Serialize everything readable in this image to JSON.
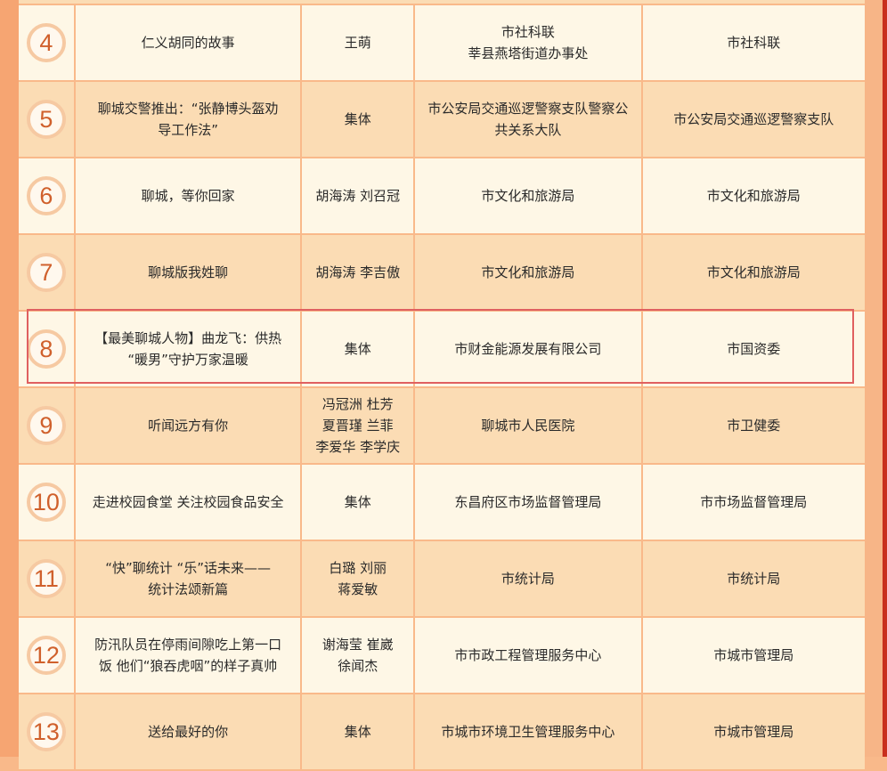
{
  "colors": {
    "row_light": "#fef7e6",
    "row_dark": "#fbdcb4",
    "number": "#d0602c",
    "highlight": "#e06060"
  },
  "highlighted_row": 8,
  "rows": [
    {
      "no": "4",
      "title": "仁义胡同的故事",
      "author": "王萌",
      "unit": "市社科联\n莘县燕塔街道办事处",
      "dept": "市社科联"
    },
    {
      "no": "5",
      "title": "聊城交警推出：“张静博头盔劝\n导工作法”",
      "author": "集体",
      "unit": "市公安局交通巡逻警察支队警察公\n共关系大队",
      "dept": "市公安局交通巡逻警察支队"
    },
    {
      "no": "6",
      "title": "聊城，等你回家",
      "author": "胡海涛 刘召冠",
      "unit": "市文化和旅游局",
      "dept": "市文化和旅游局"
    },
    {
      "no": "7",
      "title": "聊城版我姓聊",
      "author": "胡海涛 李吉傲",
      "unit": "市文化和旅游局",
      "dept": "市文化和旅游局"
    },
    {
      "no": "8",
      "title": "【最美聊城人物】曲龙飞：供热\n“暖男”守护万家温暖",
      "author": "集体",
      "unit": "市财金能源发展有限公司",
      "dept": "市国资委"
    },
    {
      "no": "9",
      "title": "听闻远方有你",
      "author": "冯冠洲 杜芳\n夏晋瑾 兰菲\n李爱华  李学庆",
      "unit": "聊城市人民医院",
      "dept": "市卫健委"
    },
    {
      "no": "10",
      "title": "走进校园食堂 关注校园食品安全",
      "author": "集体",
      "unit": "东昌府区市场监督管理局",
      "dept": "市市场监督管理局"
    },
    {
      "no": "11",
      "title": "“快”聊统计 “乐”话未来——\n统计法颂新篇",
      "author": "白璐 刘丽\n蒋爱敏",
      "unit": "市统计局",
      "dept": "市统计局"
    },
    {
      "no": "12",
      "title": "防汛队员在停雨间隙吃上第一口\n饭 他们“狼吞虎咽”的样子真帅",
      "author": "谢海莹 崔崴\n徐闻杰",
      "unit": "市市政工程管理服务中心",
      "dept": "市城市管理局"
    },
    {
      "no": "13",
      "title": "送给最好的你",
      "author": "集体",
      "unit": "市城市环境卫生管理服务中心",
      "dept": "市城市管理局"
    }
  ]
}
